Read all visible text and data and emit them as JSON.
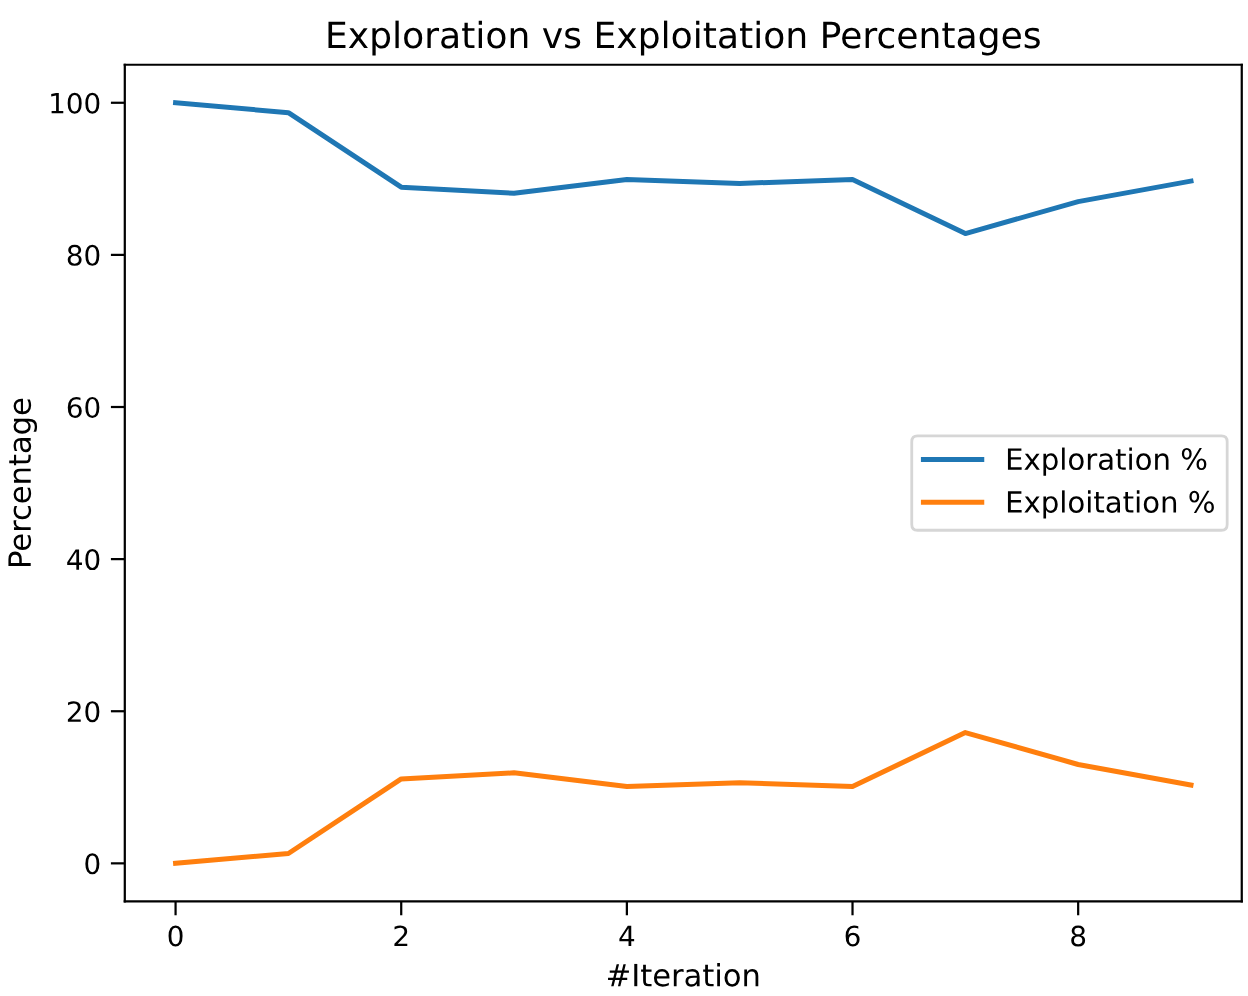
{
  "chart_data": {
    "type": "line",
    "title": "Exploration vs Exploitation Percentages",
    "xlabel": "#Iteration",
    "ylabel": "Percentage",
    "x": [
      0,
      1,
      2,
      3,
      4,
      5,
      6,
      7,
      8,
      9
    ],
    "series": [
      {
        "name": "Exploration %",
        "color": "#1f77b4",
        "values": [
          100,
          98.7,
          88.9,
          88.1,
          89.9,
          89.4,
          89.9,
          82.8,
          87.0,
          89.7
        ]
      },
      {
        "name": "Exploitation %",
        "color": "#ff7f0e",
        "values": [
          0,
          1.3,
          11.1,
          11.9,
          10.1,
          10.6,
          10.1,
          17.2,
          13.0,
          10.3
        ]
      }
    ],
    "xlim": [
      -0.45,
      9.45
    ],
    "xticks": [
      0,
      2,
      4,
      6,
      8
    ],
    "ylim": [
      -5,
      105
    ],
    "yticks": [
      0,
      20,
      40,
      60,
      80,
      100
    ],
    "grid": false,
    "legend": "center right",
    "marker": "none",
    "line_style": "solid"
  }
}
